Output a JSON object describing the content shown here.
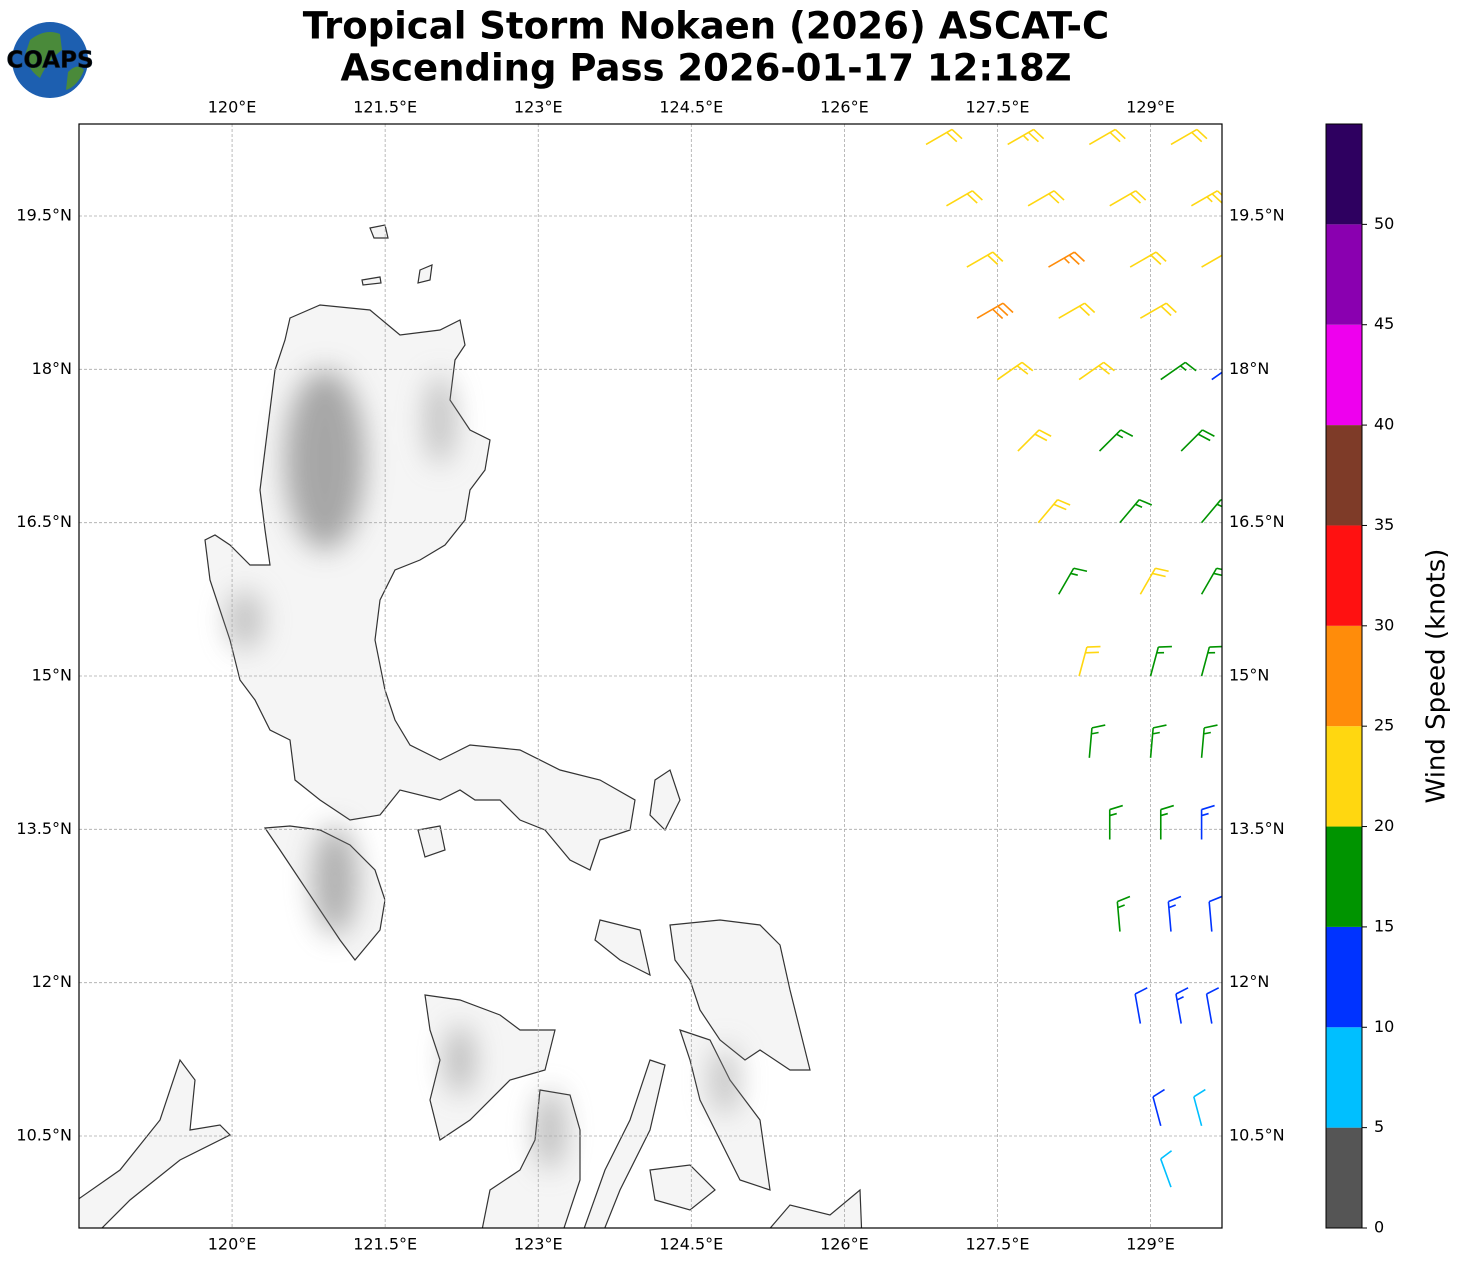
{
  "chart_data": {
    "type": "barbs",
    "title": "Tropical Storm Nokaen (2026) ASCAT-C",
    "subtitle": "Ascending Pass 2026-01-17 12:18Z",
    "logo": "COAPS",
    "xlim": [
      118.5,
      129.7
    ],
    "ylim": [
      9.6,
      20.4
    ],
    "xticks": [
      {
        "value": 120,
        "label": "120°E"
      },
      {
        "value": 121.5,
        "label": "121.5°E"
      },
      {
        "value": 123,
        "label": "123°E"
      },
      {
        "value": 124.5,
        "label": "124.5°E"
      },
      {
        "value": 126,
        "label": "126°E"
      },
      {
        "value": 127.5,
        "label": "127.5°E"
      },
      {
        "value": 129,
        "label": "129°E"
      }
    ],
    "yticks": [
      {
        "value": 10.5,
        "label": "10.5°N"
      },
      {
        "value": 12,
        "label": "12°N"
      },
      {
        "value": 13.5,
        "label": "13.5°N"
      },
      {
        "value": 15,
        "label": "15°N"
      },
      {
        "value": 16.5,
        "label": "16.5°N"
      },
      {
        "value": 18,
        "label": "18°N"
      },
      {
        "value": 19.5,
        "label": "19.5°N"
      }
    ],
    "grid": true,
    "barbs": {
      "lon": [
        126.8,
        127.6,
        128.4,
        129.2,
        127.0,
        127.8,
        128.6,
        129.4,
        127.2,
        128.0,
        128.8,
        129.5,
        127.3,
        128.1,
        128.9,
        127.5,
        128.3,
        129.1,
        129.6,
        127.7,
        128.5,
        129.3,
        127.9,
        128.7,
        129.5,
        128.1,
        128.9,
        129.5,
        128.3,
        129.0,
        129.5,
        128.4,
        129.0,
        129.5,
        128.6,
        129.1,
        129.5,
        128.7,
        129.2,
        129.6,
        128.9,
        129.3,
        129.6,
        129.1,
        129.5,
        129.2
      ],
      "lat": [
        20.2,
        20.2,
        20.2,
        20.2,
        19.6,
        19.6,
        19.6,
        19.6,
        19.0,
        19.0,
        19.0,
        19.0,
        18.5,
        18.5,
        18.5,
        17.9,
        17.9,
        17.9,
        17.9,
        17.2,
        17.2,
        17.2,
        16.5,
        16.5,
        16.5,
        15.8,
        15.8,
        15.8,
        15.0,
        15.0,
        15.0,
        14.2,
        14.2,
        14.2,
        13.4,
        13.4,
        13.4,
        12.5,
        12.5,
        12.5,
        11.6,
        11.6,
        11.6,
        10.6,
        10.6,
        10.0
      ],
      "speed": [
        22,
        23,
        21,
        22,
        22,
        21,
        22,
        23,
        22,
        27,
        22,
        21,
        28,
        22,
        21,
        22,
        21,
        17,
        12,
        22,
        17,
        18,
        21,
        17,
        17,
        17,
        22,
        18,
        21,
        17,
        16,
        17,
        17,
        16,
        17,
        16,
        13,
        17,
        13,
        12,
        12,
        13,
        11,
        11,
        8,
        8
      ],
      "direction": [
        60,
        60,
        60,
        60,
        60,
        60,
        60,
        60,
        60,
        60,
        60,
        60,
        60,
        60,
        60,
        55,
        55,
        55,
        55,
        45,
        45,
        45,
        40,
        40,
        40,
        30,
        30,
        30,
        15,
        15,
        15,
        5,
        5,
        5,
        0,
        0,
        0,
        355,
        355,
        355,
        350,
        350,
        350,
        345,
        345,
        340
      ]
    },
    "colorbar": {
      "label": "Wind Speed (knots)",
      "bounds": [
        0,
        5,
        10,
        15,
        20,
        25,
        30,
        35,
        40,
        45,
        50,
        55
      ],
      "colors": [
        "#555555",
        "#00bfff",
        "#0033ff",
        "#009400",
        "#ffd710",
        "#ff8c0a",
        "#ff1111",
        "#7e3b28",
        "#ee00ee",
        "#8a00b0",
        "#2e0060"
      ],
      "ticks": [
        0,
        5,
        10,
        15,
        20,
        25,
        30,
        35,
        40,
        45,
        50
      ]
    }
  }
}
